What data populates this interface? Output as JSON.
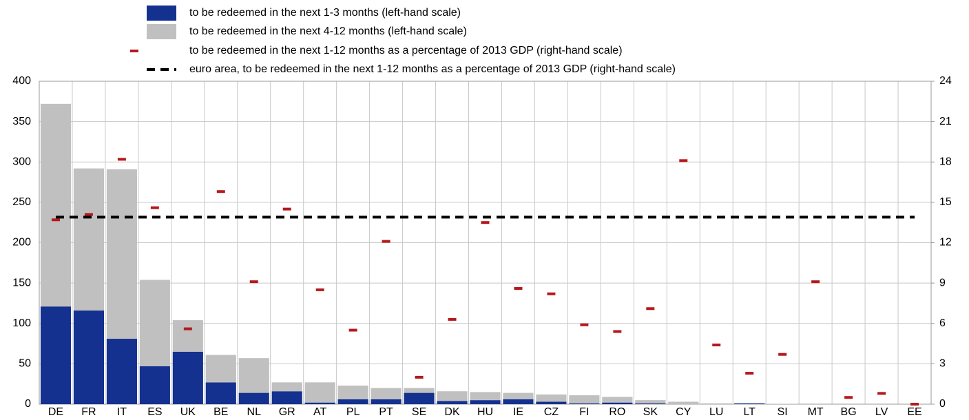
{
  "chart_data": {
    "type": "bar",
    "categories": [
      "DE",
      "FR",
      "IT",
      "ES",
      "UK",
      "BE",
      "NL",
      "GR",
      "AT",
      "PL",
      "PT",
      "SE",
      "DK",
      "HU",
      "IE",
      "CZ",
      "FI",
      "RO",
      "SK",
      "CY",
      "LU",
      "LT",
      "SI",
      "MT",
      "BG",
      "LV",
      "EE"
    ],
    "stacked": true,
    "series": [
      {
        "name": "to be redeemed in the next 1-3 months (left-hand scale)",
        "color": "#14318f",
        "axis": "y",
        "values": [
          121,
          116,
          81,
          47,
          65,
          27,
          14,
          16,
          2,
          6,
          6,
          14,
          4,
          5,
          6,
          3,
          1,
          2,
          1,
          0,
          0,
          1,
          0,
          0,
          0,
          0,
          0
        ]
      },
      {
        "name": "to be redeemed in the next 4-12 months (left-hand scale)",
        "color": "#c0c0c0",
        "axis": "y",
        "values": [
          251,
          176,
          210,
          107,
          39,
          34,
          43,
          11,
          25,
          17,
          14,
          6,
          12,
          10,
          8,
          9,
          10,
          7,
          4,
          3,
          1,
          0,
          0.5,
          0,
          0,
          0,
          0
        ]
      },
      {
        "name": "to be redeemed in the next 1-12 months as a percentage of 2013 GDP (right-hand scale)",
        "color": "#b5191d",
        "axis": "y2",
        "type": "marker",
        "values": [
          13.7,
          14.1,
          18.2,
          14.6,
          5.6,
          15.8,
          9.1,
          14.5,
          8.5,
          5.5,
          12.1,
          2.0,
          6.3,
          13.5,
          8.6,
          8.2,
          5.9,
          5.4,
          7.1,
          18.1,
          4.4,
          2.3,
          3.7,
          9.1,
          0.5,
          0.8,
          0
        ]
      }
    ],
    "reference_line": {
      "name": "euro area, to be redeemed in the next 1-12 months as a percentage of 2013 GDP (right-hand scale)",
      "value": 13.9,
      "axis": "y2",
      "color": "#000000"
    },
    "ylim": [
      0,
      400
    ],
    "yticks": [
      0,
      50,
      100,
      150,
      200,
      250,
      300,
      350,
      400
    ],
    "y2lim": [
      0,
      24
    ],
    "y2ticks": [
      0,
      3,
      6,
      9,
      12,
      15,
      18,
      21,
      24
    ],
    "grid": true
  }
}
